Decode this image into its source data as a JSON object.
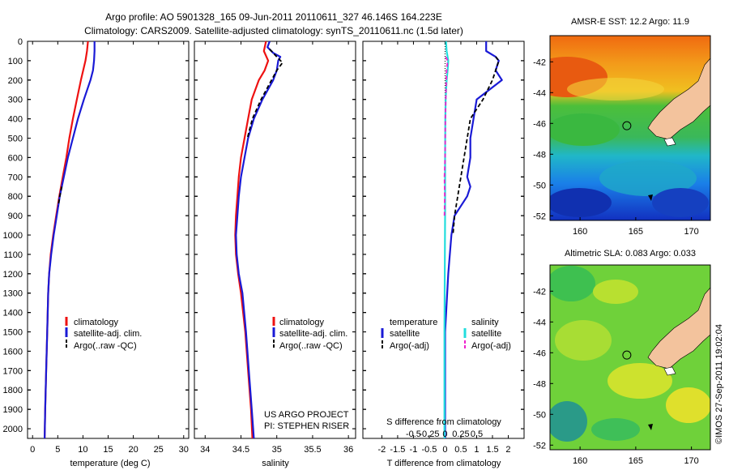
{
  "header": {
    "line1": "Argo profile: AO 5901328_165 09-Jun-2011 20110611_327 46.146S 164.223E",
    "line2": "Climatology: CARS2009. Satellite-adjusted climatology: synTS_20110611.nc (1.5d later)"
  },
  "colors": {
    "clim": "#ee1111",
    "sat": "#1a1ad6",
    "argo": "#000000",
    "cyan": "#22dddd",
    "magenta": "#ee22cc"
  },
  "project": {
    "line1": "US ARGO PROJECT",
    "line2": "PI: STEPHEN RISER"
  },
  "watermark": "©IMOS 27-Sep-2011 19:02:04",
  "chart_data": [
    {
      "type": "line",
      "name": "temperature",
      "xlabel": "temperature (deg C)",
      "ylabel": "",
      "xlim": [
        -1,
        31
      ],
      "ylim": [
        2050,
        0
      ],
      "xticks": [
        0,
        5,
        10,
        15,
        20,
        25,
        30
      ],
      "yticks": [
        0,
        100,
        200,
        300,
        400,
        500,
        600,
        700,
        800,
        900,
        1000,
        1100,
        1200,
        1300,
        1400,
        1500,
        1600,
        1700,
        1800,
        1900,
        2000
      ],
      "legend": [
        "climatology",
        "satellite-adj. clim.",
        "Argo(..raw -QC)"
      ],
      "series": [
        {
          "key": "clim",
          "points": [
            [
              0,
              11.0
            ],
            [
              50,
              10.8
            ],
            [
              100,
              10.5
            ],
            [
              200,
              9.6
            ],
            [
              300,
              8.8
            ],
            [
              400,
              8.0
            ],
            [
              500,
              7.3
            ],
            [
              600,
              6.7
            ],
            [
              700,
              6.0
            ],
            [
              800,
              5.3
            ],
            [
              900,
              4.7
            ],
            [
              1000,
              4.1
            ],
            [
              1100,
              3.6
            ],
            [
              1200,
              3.3
            ],
            [
              1300,
              3.1
            ],
            [
              1500,
              2.9
            ],
            [
              1700,
              2.7
            ],
            [
              1900,
              2.5
            ],
            [
              2050,
              2.4
            ]
          ]
        },
        {
          "key": "sat",
          "points": [
            [
              0,
              12.3
            ],
            [
              50,
              12.3
            ],
            [
              100,
              12.2
            ],
            [
              150,
              12.0
            ],
            [
              200,
              11.5
            ],
            [
              300,
              10.2
            ],
            [
              400,
              9.0
            ],
            [
              500,
              8.0
            ],
            [
              600,
              7.0
            ],
            [
              700,
              6.2
            ],
            [
              800,
              5.4
            ],
            [
              900,
              4.8
            ],
            [
              1000,
              4.2
            ],
            [
              1100,
              3.7
            ],
            [
              1200,
              3.3
            ],
            [
              1300,
              3.1
            ],
            [
              1500,
              2.9
            ],
            [
              1700,
              2.7
            ],
            [
              1900,
              2.5
            ],
            [
              2050,
              2.4
            ]
          ]
        },
        {
          "key": "argo",
          "points": [
            [
              750,
              5.8
            ],
            [
              800,
              5.4
            ],
            [
              850,
              5.1
            ]
          ]
        }
      ]
    },
    {
      "type": "line",
      "name": "salinity",
      "xlabel": "salinity",
      "ylabel": "",
      "xlim": [
        33.85,
        36.1
      ],
      "ylim": [
        2050,
        0
      ],
      "xticks": [
        34,
        34.5,
        35,
        35.5,
        36
      ],
      "legend": [
        "climatology",
        "satellite-adj. clim.",
        "Argo(..raw -QC)"
      ],
      "series": [
        {
          "key": "clim",
          "points": [
            [
              0,
              34.85
            ],
            [
              50,
              34.82
            ],
            [
              100,
              34.88
            ],
            [
              150,
              34.83
            ],
            [
              200,
              34.75
            ],
            [
              300,
              34.65
            ],
            [
              400,
              34.6
            ],
            [
              500,
              34.55
            ],
            [
              600,
              34.5
            ],
            [
              700,
              34.47
            ],
            [
              800,
              34.45
            ],
            [
              900,
              34.43
            ],
            [
              1000,
              34.42
            ],
            [
              1100,
              34.43
            ],
            [
              1200,
              34.46
            ],
            [
              1300,
              34.5
            ],
            [
              1500,
              34.56
            ],
            [
              1700,
              34.6
            ],
            [
              1900,
              34.64
            ],
            [
              2050,
              34.66
            ]
          ]
        },
        {
          "key": "sat",
          "points": [
            [
              0,
              34.9
            ],
            [
              30,
              34.87
            ],
            [
              60,
              34.95
            ],
            [
              80,
              35.05
            ],
            [
              100,
              35.02
            ],
            [
              150,
              35.0
            ],
            [
              200,
              34.95
            ],
            [
              300,
              34.8
            ],
            [
              400,
              34.68
            ],
            [
              500,
              34.6
            ],
            [
              600,
              34.55
            ],
            [
              700,
              34.5
            ],
            [
              800,
              34.47
            ],
            [
              900,
              34.45
            ],
            [
              1000,
              34.43
            ],
            [
              1100,
              34.44
            ],
            [
              1200,
              34.47
            ],
            [
              1300,
              34.52
            ],
            [
              1500,
              34.57
            ],
            [
              1700,
              34.61
            ],
            [
              1900,
              34.65
            ],
            [
              2050,
              34.68
            ]
          ]
        },
        {
          "key": "argo",
          "points": [
            [
              40,
              34.9
            ],
            [
              80,
              35.0
            ],
            [
              110,
              35.08
            ],
            [
              150,
              35.0
            ],
            [
              300,
              34.78
            ],
            [
              400,
              34.66
            ],
            [
              500,
              34.59
            ]
          ]
        }
      ]
    },
    {
      "type": "line",
      "name": "difference",
      "xlabel": "T difference from climatology",
      "xlabel2": "S difference from climatology",
      "xlim": [
        -2.6,
        2.5
      ],
      "ylim": [
        2050,
        0
      ],
      "xticks": [
        -2,
        -1.5,
        -1,
        -0.5,
        0,
        0.5,
        1,
        1.5,
        2
      ],
      "xticklabels_s": [
        "-0.5",
        "-0.25",
        "0",
        "0.25",
        "0.5"
      ],
      "legend": {
        "temperature": "temperature",
        "salinity": "salinity",
        "sat_t": "satellite",
        "argo_t": "Argo(-adj)",
        "sat_s": "satellite",
        "argo_s": "Argo(-adj)"
      },
      "series": [
        {
          "key": "sat",
          "points": [
            [
              0,
              1.3
            ],
            [
              50,
              1.3
            ],
            [
              80,
              1.6
            ],
            [
              100,
              1.7
            ],
            [
              150,
              1.6
            ],
            [
              200,
              1.8
            ],
            [
              250,
              1.4
            ],
            [
              300,
              1.0
            ],
            [
              400,
              0.9
            ],
            [
              500,
              0.8
            ],
            [
              600,
              0.8
            ],
            [
              700,
              0.7
            ],
            [
              750,
              0.8
            ],
            [
              800,
              0.7
            ],
            [
              850,
              0.5
            ],
            [
              900,
              0.3
            ],
            [
              1000,
              0.2
            ],
            [
              1200,
              0.1
            ],
            [
              1500,
              0.0
            ],
            [
              2050,
              0.0
            ]
          ]
        },
        {
          "key": "argo",
          "points": [
            [
              80,
              1.6
            ],
            [
              100,
              1.7
            ],
            [
              150,
              1.6
            ],
            [
              200,
              1.5
            ],
            [
              300,
              1.2
            ],
            [
              400,
              0.8
            ],
            [
              500,
              0.7
            ],
            [
              600,
              0.6
            ],
            [
              700,
              0.5
            ],
            [
              800,
              0.4
            ],
            [
              900,
              0.3
            ],
            [
              1000,
              0.25
            ]
          ]
        },
        {
          "key": "cyan",
          "points": [
            [
              0,
              0.03
            ],
            [
              50,
              0.05
            ],
            [
              100,
              0.1
            ],
            [
              150,
              0.08
            ],
            [
              200,
              0.05
            ],
            [
              300,
              0.02
            ],
            [
              400,
              0.01
            ],
            [
              600,
              0.0
            ],
            [
              900,
              0.0
            ],
            [
              1200,
              -0.01
            ],
            [
              1500,
              -0.02
            ],
            [
              2050,
              -0.02
            ]
          ]
        },
        {
          "key": "magenta",
          "points": [
            [
              80,
              0.02
            ],
            [
              100,
              0.08
            ],
            [
              150,
              0.05
            ],
            [
              250,
              0.03
            ],
            [
              400,
              0.01
            ],
            [
              600,
              0.0
            ],
            [
              700,
              -0.02
            ],
            [
              800,
              -0.01
            ],
            [
              900,
              -0.02
            ]
          ]
        }
      ]
    },
    {
      "type": "heatmap",
      "name": "sst",
      "title": "AMSR-E SST: 12.2 Argo: 11.9",
      "xticks": [
        160,
        165,
        170
      ],
      "yticks": [
        -42,
        -44,
        -46,
        -48,
        -50,
        -52
      ],
      "xlim": [
        157.3,
        171.7
      ],
      "ylim": [
        -52.3,
        -40.3
      ],
      "marker": [
        164.2,
        -46.15
      ]
    },
    {
      "type": "heatmap",
      "name": "sla",
      "title": "Altimetric SLA: 0.083 Argo: 0.033",
      "xticks": [
        160,
        165,
        170
      ],
      "yticks": [
        -42,
        -44,
        -46,
        -48,
        -50,
        -52
      ],
      "xlim": [
        157.3,
        171.7
      ],
      "ylim": [
        -52.3,
        -40.3
      ],
      "marker": [
        164.2,
        -46.15
      ]
    }
  ]
}
